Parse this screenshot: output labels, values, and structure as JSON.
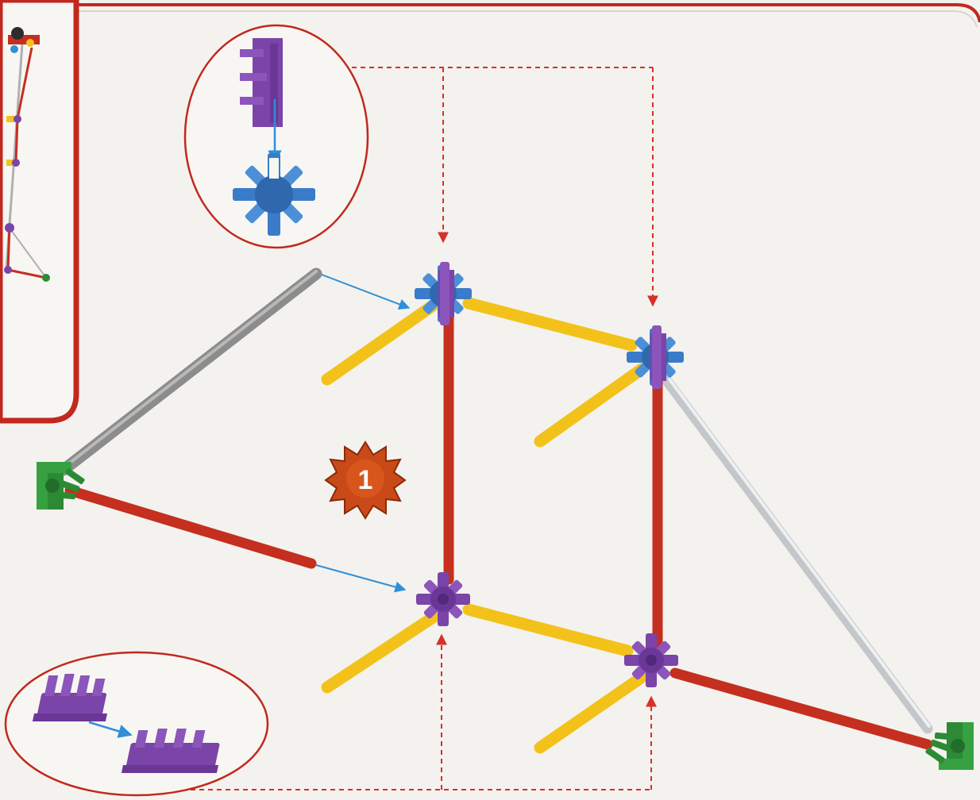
{
  "step": {
    "number": "1"
  },
  "palette": {
    "frame_red": "#c2281e",
    "guide_red": "#d8302a",
    "arrow_blue": "#2f8fd8",
    "rod_red": "#c52f1f",
    "rod_yellow": "#f3c21a",
    "rod_gray": "#8c8c8c",
    "rod_white": "#d7d9dc",
    "connector_purple": "#7a44a8",
    "connector_blue": "#3a7cc9",
    "connector_green": "#2c8a34",
    "badge_orange": "#c94a18"
  },
  "icons": {
    "badge": "starburst-badge-icon",
    "zoom_top": "purple-onto-blue-connector-icon",
    "zoom_bottom": "purple-onto-purple-connector-icon"
  }
}
